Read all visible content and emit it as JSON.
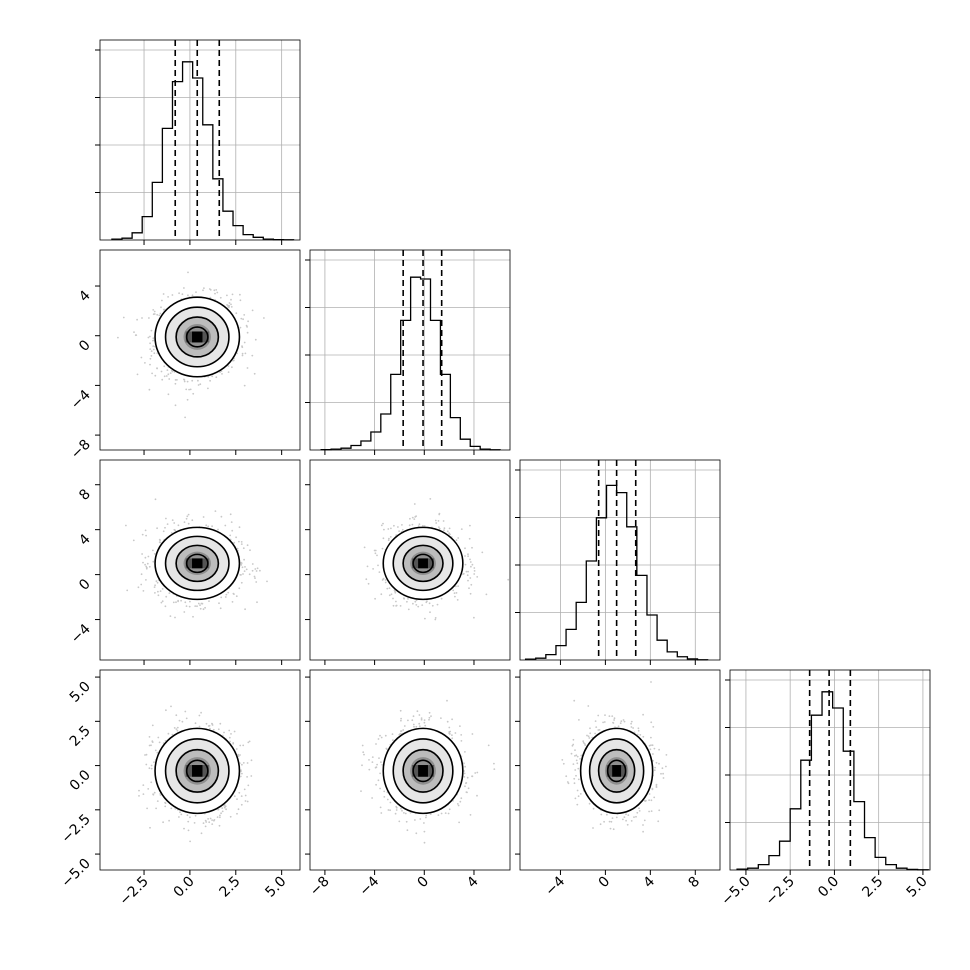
{
  "figure": {
    "type": "corner-plot",
    "background": "#ffffff",
    "hist_color": "#000000",
    "quantile_line_style": "dashed",
    "grid": true
  },
  "chart_data": {
    "type": "corner",
    "parameters": [
      {
        "name": "",
        "range": [
          -4.9,
          6.0
        ],
        "ticks": [
          -2.5,
          0.0,
          2.5,
          5.0
        ],
        "tick_labels": [
          "−2.5",
          "0.0",
          "2.5",
          "5.0"
        ],
        "mean": 0.4,
        "sd": 1.15
      },
      {
        "name": "",
        "range": [
          -9.2,
          6.9
        ],
        "ticks": [
          -8,
          -4,
          0,
          4
        ],
        "tick_labels": [
          "−8",
          "−4",
          "0",
          "4"
        ],
        "mean": -0.1,
        "sd": 1.6
      },
      {
        "name": "",
        "range": [
          -7.6,
          10.2
        ],
        "ticks": [
          -4,
          0,
          4,
          8
        ],
        "tick_labels": [
          "−4",
          "0",
          "4",
          "8"
        ],
        "mean": 1.0,
        "sd": 1.6
      },
      {
        "name": "",
        "range": [
          -5.9,
          5.4
        ],
        "ticks": [
          -5.0,
          -2.5,
          0.0,
          2.5,
          5.0
        ],
        "tick_labels": [
          "−5.0",
          "−2.5",
          "0.0",
          "2.5",
          "5.0"
        ],
        "mean": -0.3,
        "sd": 1.2
      }
    ],
    "histograms": [
      {
        "param": 0,
        "quantiles": [
          -0.8,
          0.4,
          1.6
        ],
        "bins": [
          -4.25,
          -3.7,
          -3.15,
          -2.6,
          -2.05,
          -1.5,
          -0.95,
          -0.4,
          0.15,
          0.7,
          1.25,
          1.8,
          2.35,
          2.9,
          3.45,
          4.0,
          4.55,
          5.1,
          5.65
        ],
        "counts": [
          0.005,
          0.01,
          0.04,
          0.13,
          0.32,
          0.62,
          0.88,
          0.99,
          0.9,
          0.64,
          0.34,
          0.16,
          0.08,
          0.03,
          0.015,
          0.005,
          0.002,
          0.001
        ]
      },
      {
        "param": 1,
        "quantiles": [
          -1.7,
          -0.1,
          1.4
        ],
        "bins": [
          -8.3,
          -7.5,
          -6.7,
          -5.9,
          -5.1,
          -4.3,
          -3.5,
          -2.7,
          -1.9,
          -1.1,
          -0.3,
          0.5,
          1.3,
          2.1,
          2.9,
          3.7,
          4.5,
          5.3,
          6.1
        ],
        "counts": [
          0.002,
          0.005,
          0.01,
          0.025,
          0.05,
          0.1,
          0.2,
          0.42,
          0.72,
          0.96,
          0.95,
          0.72,
          0.42,
          0.18,
          0.06,
          0.02,
          0.005,
          0.001
        ]
      },
      {
        "param": 2,
        "quantiles": [
          -0.6,
          1.0,
          2.7
        ],
        "bins": [
          -7.1,
          -6.2,
          -5.3,
          -4.4,
          -3.5,
          -2.6,
          -1.7,
          -0.8,
          0.1,
          1.0,
          1.9,
          2.8,
          3.7,
          4.6,
          5.5,
          6.4,
          7.3,
          8.2,
          9.1
        ],
        "counts": [
          0.005,
          0.01,
          0.03,
          0.08,
          0.17,
          0.32,
          0.55,
          0.79,
          0.97,
          0.93,
          0.74,
          0.47,
          0.25,
          0.11,
          0.045,
          0.018,
          0.006,
          0.001
        ]
      },
      {
        "param": 3,
        "quantiles": [
          -1.4,
          -0.3,
          0.9
        ],
        "bins": [
          -5.5,
          -4.9,
          -4.3,
          -3.7,
          -3.1,
          -2.5,
          -1.9,
          -1.3,
          -0.7,
          -0.1,
          0.5,
          1.1,
          1.7,
          2.3,
          2.9,
          3.5,
          4.1,
          4.7,
          5.3
        ],
        "counts": [
          0.005,
          0.01,
          0.03,
          0.08,
          0.16,
          0.34,
          0.61,
          0.86,
          0.99,
          0.9,
          0.66,
          0.38,
          0.18,
          0.07,
          0.03,
          0.01,
          0.003,
          0.001
        ]
      }
    ],
    "pairs": [
      {
        "x": 0,
        "y": 1,
        "corr": 0.05
      },
      {
        "x": 0,
        "y": 2,
        "corr": 0.0
      },
      {
        "x": 1,
        "y": 2,
        "corr": 0.0
      },
      {
        "x": 0,
        "y": 3,
        "corr": 0.0
      },
      {
        "x": 1,
        "y": 3,
        "corr": 0.0
      },
      {
        "x": 2,
        "y": 3,
        "corr": -0.05
      }
    ],
    "contour_levels_sigma": [
      0.5,
      1.0,
      1.5,
      2.0
    ],
    "scatter_color": "#c8c8c8",
    "density_colors": [
      "#bcbcbc",
      "#8f8f8f",
      "#555555",
      "#000000"
    ]
  }
}
